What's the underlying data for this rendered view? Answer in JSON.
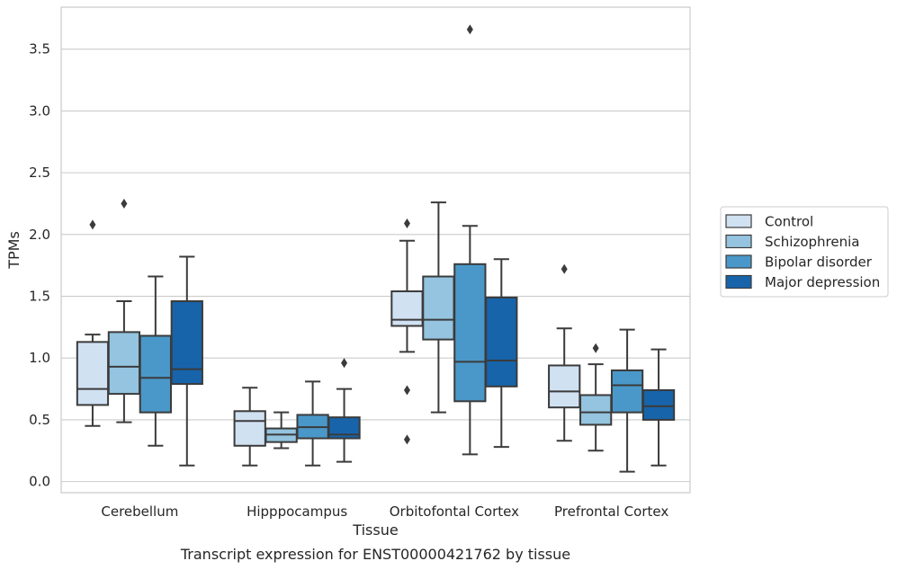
{
  "chart_data": {
    "type": "box",
    "caption": "Transcript expression for ENST00000421762 by tissue",
    "xlabel": "Tissue",
    "ylabel": "TPMs",
    "ylim": [
      -0.09,
      3.84
    ],
    "yticks": [
      0.0,
      0.5,
      1.0,
      1.5,
      2.0,
      2.5,
      3.0,
      3.5
    ],
    "ytick_labels": [
      "0.0",
      "0.5",
      "1.0",
      "1.5",
      "2.0",
      "2.5",
      "3.0",
      "3.5"
    ],
    "grid": "horizontal",
    "legend_position": "right",
    "categories": [
      "Cerebellum",
      "Hipppocampus",
      "Orbitofontal Cortex",
      "Prefrontal Cortex"
    ],
    "series": [
      {
        "name": "Control",
        "color": "#d0e1f2",
        "boxes": [
          {
            "whislo": 0.45,
            "q1": 0.62,
            "med": 0.75,
            "q3": 1.13,
            "whishi": 1.19,
            "fliers": [
              2.08
            ]
          },
          {
            "whislo": 0.13,
            "q1": 0.29,
            "med": 0.49,
            "q3": 0.57,
            "whishi": 0.76,
            "fliers": []
          },
          {
            "whislo": 1.05,
            "q1": 1.26,
            "med": 1.31,
            "q3": 1.54,
            "whishi": 1.95,
            "fliers": [
              2.09,
              0.74,
              0.34
            ]
          },
          {
            "whislo": 0.33,
            "q1": 0.6,
            "med": 0.73,
            "q3": 0.94,
            "whishi": 1.24,
            "fliers": [
              1.72
            ]
          }
        ]
      },
      {
        "name": "Schizophrenia",
        "color": "#94c4df",
        "boxes": [
          {
            "whislo": 0.48,
            "q1": 0.71,
            "med": 0.93,
            "q3": 1.21,
            "whishi": 1.46,
            "fliers": [
              2.25
            ]
          },
          {
            "whislo": 0.27,
            "q1": 0.32,
            "med": 0.38,
            "q3": 0.43,
            "whishi": 0.56,
            "fliers": []
          },
          {
            "whislo": 0.56,
            "q1": 1.15,
            "med": 1.31,
            "q3": 1.66,
            "whishi": 2.26,
            "fliers": []
          },
          {
            "whislo": 0.25,
            "q1": 0.46,
            "med": 0.56,
            "q3": 0.7,
            "whishi": 0.95,
            "fliers": [
              1.08
            ]
          }
        ]
      },
      {
        "name": "Bipolar disorder",
        "color": "#4a98c9",
        "boxes": [
          {
            "whislo": 0.29,
            "q1": 0.56,
            "med": 0.84,
            "q3": 1.18,
            "whishi": 1.66,
            "fliers": []
          },
          {
            "whislo": 0.13,
            "q1": 0.35,
            "med": 0.44,
            "q3": 0.54,
            "whishi": 0.81,
            "fliers": []
          },
          {
            "whislo": 0.22,
            "q1": 0.65,
            "med": 0.97,
            "q3": 1.76,
            "whishi": 2.07,
            "fliers": [
              3.66
            ]
          },
          {
            "whislo": 0.08,
            "q1": 0.56,
            "med": 0.78,
            "q3": 0.9,
            "whishi": 1.23,
            "fliers": []
          }
        ]
      },
      {
        "name": "Major depression",
        "color": "#1764ab",
        "boxes": [
          {
            "whislo": 0.13,
            "q1": 0.79,
            "med": 0.91,
            "q3": 1.46,
            "whishi": 1.82,
            "fliers": []
          },
          {
            "whislo": 0.16,
            "q1": 0.35,
            "med": 0.38,
            "q3": 0.52,
            "whishi": 0.75,
            "fliers": [
              0.96
            ]
          },
          {
            "whislo": 0.28,
            "q1": 0.77,
            "med": 0.98,
            "q3": 1.49,
            "whishi": 1.8,
            "fliers": []
          },
          {
            "whislo": 0.13,
            "q1": 0.5,
            "med": 0.61,
            "q3": 0.74,
            "whishi": 1.07,
            "fliers": []
          }
        ]
      }
    ],
    "colors": {
      "line": "#3b3b3b",
      "grid": "#cccccc",
      "frame": "#cccccc",
      "text": "#262626"
    }
  }
}
